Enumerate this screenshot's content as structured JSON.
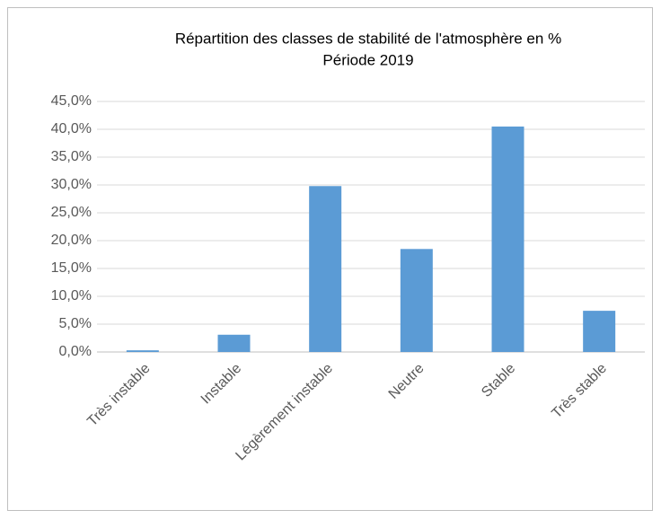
{
  "chart_data": {
    "type": "bar",
    "title": "Répartition des classes de stabilité de l'atmosphère  en %",
    "subtitle": "Période 2019",
    "categories": [
      "Très instable",
      "Instable",
      "Légèrement instable",
      "Neutre",
      "Stable",
      "Très stable"
    ],
    "values": [
      0.3,
      3.1,
      29.8,
      18.5,
      40.5,
      7.4
    ],
    "color": "#5b9bd5",
    "ylim": [
      0,
      45
    ],
    "yticks": [
      {
        "value": 0,
        "label": "0,0%"
      },
      {
        "value": 5,
        "label": "5,0%"
      },
      {
        "value": 10,
        "label": "10,0%"
      },
      {
        "value": 15,
        "label": "15,0%"
      },
      {
        "value": 20,
        "label": "20,0%"
      },
      {
        "value": 25,
        "label": "25,0%"
      },
      {
        "value": 30,
        "label": "30,0%"
      },
      {
        "value": 35,
        "label": "35,0%"
      },
      {
        "value": 40,
        "label": "40,0%"
      },
      {
        "value": 45,
        "label": "45,0%"
      }
    ],
    "grid": true
  }
}
